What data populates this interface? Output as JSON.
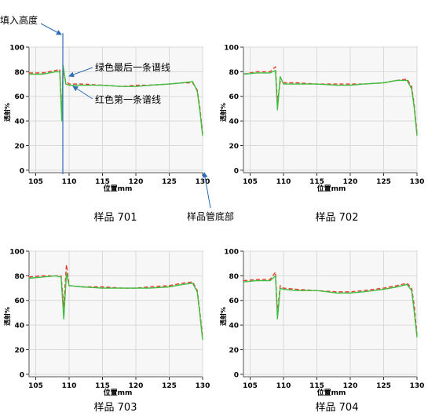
{
  "annotations": {
    "fill_height": "填入高度",
    "green_last": "绿色最后一条谱线",
    "red_first": "红色第一条谱线",
    "tube_bottom": "样品管底部"
  },
  "colors": {
    "red": "#e8392c",
    "green": "#3fbf3f",
    "grid": "#d9d9d9",
    "plot_bg": "#f7f7f7",
    "marker": "#2f6db5"
  },
  "chart_data": [
    {
      "type": "line",
      "caption": "样品 701",
      "xlabel": "位置mm",
      "ylabel": "透射%",
      "xlim": [
        104,
        130
      ],
      "ylim": [
        -2,
        100
      ],
      "xticks": [
        105,
        110,
        115,
        120,
        125,
        130
      ],
      "yticks": [
        0,
        20,
        40,
        60,
        80,
        100
      ],
      "grid": true,
      "series": [
        {
          "color": "red",
          "dash": "5,3",
          "x": [
            104,
            106,
            108,
            108.6,
            108.9,
            109.1,
            109.5,
            110,
            112,
            115,
            118,
            120,
            122,
            125,
            127,
            128.5,
            129.2,
            129.6,
            130
          ],
          "y": [
            79,
            79,
            81,
            82,
            45,
            80,
            72,
            70,
            70,
            69,
            68,
            69,
            69,
            70,
            71,
            71,
            65,
            50,
            30
          ]
        },
        {
          "color": "green",
          "dash": "",
          "x": [
            104,
            106,
            108,
            108.6,
            108.9,
            109.1,
            109.5,
            110,
            112,
            115,
            118,
            120,
            122,
            125,
            127,
            128.5,
            129.2,
            129.6,
            130
          ],
          "y": [
            78,
            78,
            80,
            80,
            40,
            85,
            70,
            69,
            69,
            69,
            68,
            68,
            69,
            70,
            71,
            72,
            64,
            48,
            28
          ]
        }
      ]
    },
    {
      "type": "line",
      "caption": "样品 702",
      "xlabel": "位置mm",
      "ylabel": "透射%",
      "xlim": [
        104,
        130
      ],
      "ylim": [
        -2,
        100
      ],
      "xticks": [
        105,
        110,
        115,
        120,
        125,
        130
      ],
      "yticks": [
        0,
        20,
        40,
        60,
        80,
        100
      ],
      "grid": true,
      "series": [
        {
          "color": "red",
          "dash": "5,3",
          "x": [
            104,
            106,
            108,
            108.8,
            109.1,
            109.5,
            110,
            112,
            115,
            118,
            120,
            122,
            125,
            127,
            128.5,
            129.2,
            129.6,
            130
          ],
          "y": [
            78,
            80,
            80,
            84,
            55,
            72,
            71,
            71,
            70,
            70,
            70,
            70,
            71,
            73,
            74,
            68,
            52,
            30
          ]
        },
        {
          "color": "green",
          "dash": "",
          "x": [
            104,
            106,
            108,
            108.8,
            109.1,
            109.5,
            110,
            112,
            115,
            118,
            120,
            122,
            125,
            127,
            128.5,
            129.2,
            129.6,
            130
          ],
          "y": [
            78,
            79,
            79,
            81,
            49,
            76,
            70,
            70,
            70,
            69,
            69,
            70,
            71,
            73,
            73,
            66,
            50,
            28
          ]
        }
      ]
    },
    {
      "type": "line",
      "caption": "样品 703",
      "xlabel": "位置mm",
      "ylabel": "透射%",
      "xlim": [
        104,
        130
      ],
      "ylim": [
        -2,
        100
      ],
      "xticks": [
        105,
        110,
        115,
        120,
        125,
        130
      ],
      "yticks": [
        0,
        20,
        40,
        60,
        80,
        100
      ],
      "grid": true,
      "series": [
        {
          "color": "red",
          "dash": "5,3",
          "x": [
            104,
            106,
            108,
            108.8,
            109.2,
            109.6,
            110,
            112,
            115,
            118,
            120,
            122,
            125,
            127,
            128.5,
            129.2,
            129.6,
            130
          ],
          "y": [
            79,
            80,
            80,
            80,
            55,
            89,
            72,
            71,
            71,
            70,
            70,
            71,
            72,
            74,
            75,
            68,
            50,
            30
          ]
        },
        {
          "color": "green",
          "dash": "",
          "x": [
            104,
            106,
            108,
            108.8,
            109.2,
            109.6,
            110,
            112,
            115,
            118,
            120,
            122,
            125,
            127,
            128.5,
            129.2,
            129.6,
            130
          ],
          "y": [
            78,
            79,
            80,
            79,
            45,
            82,
            72,
            71,
            70,
            70,
            70,
            70,
            71,
            73,
            74,
            67,
            48,
            28
          ]
        }
      ]
    },
    {
      "type": "line",
      "caption": "样品 704",
      "xlabel": "位置mm",
      "ylabel": "透射%",
      "xlim": [
        104,
        130
      ],
      "ylim": [
        -2,
        100
      ],
      "xticks": [
        105,
        110,
        115,
        120,
        125,
        130
      ],
      "yticks": [
        0,
        20,
        40,
        60,
        80,
        100
      ],
      "grid": true,
      "series": [
        {
          "color": "red",
          "dash": "5,3",
          "x": [
            104,
            106,
            108,
            108.8,
            109.1,
            109.5,
            110,
            112,
            115,
            118,
            120,
            122,
            125,
            127,
            128.5,
            129.2,
            129.6,
            130
          ],
          "y": [
            76,
            77,
            77,
            83,
            50,
            72,
            70,
            69,
            68,
            67,
            67,
            68,
            70,
            72,
            74,
            70,
            55,
            32
          ]
        },
        {
          "color": "green",
          "dash": "",
          "x": [
            104,
            106,
            108,
            108.8,
            109.1,
            109.5,
            110,
            112,
            115,
            118,
            120,
            122,
            125,
            127,
            128.5,
            129.2,
            129.6,
            130
          ],
          "y": [
            75,
            76,
            76,
            80,
            45,
            70,
            69,
            68,
            68,
            66,
            66,
            67,
            69,
            71,
            73,
            68,
            50,
            30
          ]
        }
      ]
    }
  ]
}
